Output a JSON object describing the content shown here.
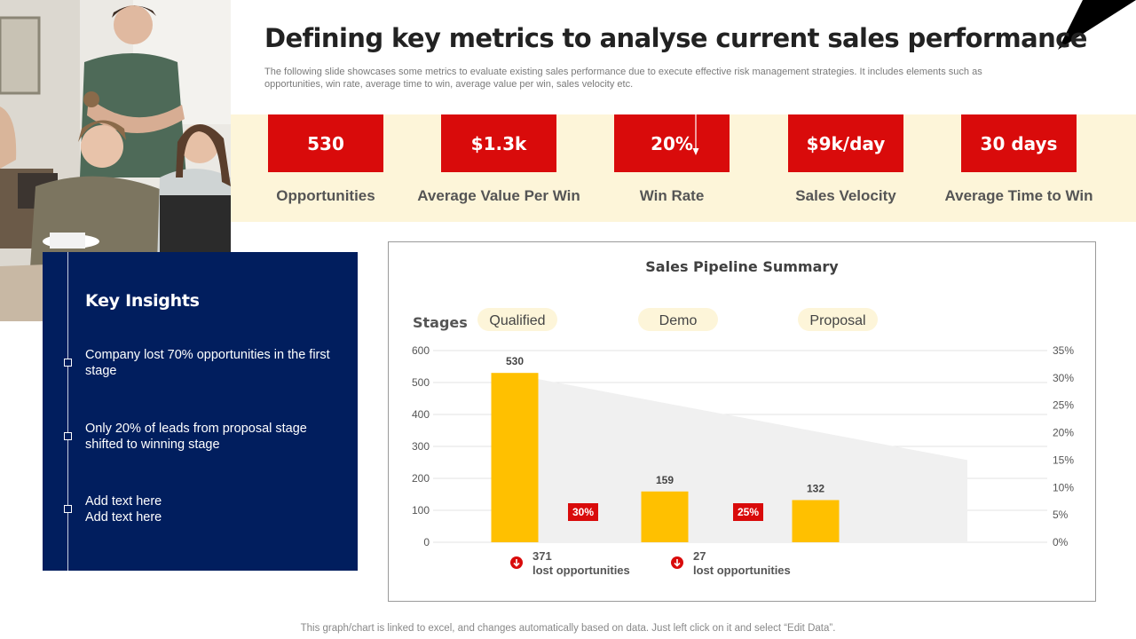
{
  "page": {
    "title": "Defining key metrics to analyse current sales performance",
    "subtitle": "The following slide showcases some metrics to evaluate existing sales performance due to execute effective risk management strategies. It includes elements such as opportunities, win rate, average time to win, average value per win, sales velocity etc.",
    "footer": "This graph/chart is linked to excel,  and changes automatically based on data. Just left click on it and select “Edit Data”."
  },
  "colors": {
    "accent_red": "#d90b0b",
    "navy": "#011e5e",
    "bar_yellow": "#ffc000",
    "band_cream": "#fdf5d9",
    "funnel_gray": "#f0f0f0"
  },
  "metrics": [
    {
      "value": "530",
      "label": "Opportunities"
    },
    {
      "value": "$1.3k",
      "label": "Average Value Per Win"
    },
    {
      "value": "20%",
      "label": "Win Rate"
    },
    {
      "value": "$9k/day",
      "label": "Sales Velocity"
    },
    {
      "value": "30 days",
      "label": "Average Time to Win"
    }
  ],
  "insights": {
    "heading": "Key Insights",
    "items": [
      "Company lost 70% opportunities in the first stage",
      "Only 20% of leads from proposal stage shifted to winning stage",
      "Add text here\nAdd text here"
    ]
  },
  "chart_data": {
    "type": "bar",
    "title": "Sales Pipeline Summary",
    "stages_label": "Stages",
    "categories": [
      "Qualified",
      "Demo",
      "Proposal"
    ],
    "values": [
      530,
      159,
      132
    ],
    "ylim": [
      0,
      600
    ],
    "yticks": [
      0,
      100,
      200,
      300,
      400,
      500,
      600
    ],
    "y2lim": [
      0,
      35
    ],
    "y2ticks": [
      "0%",
      "5%",
      "10%",
      "15%",
      "20%",
      "25%",
      "30%",
      "35%"
    ],
    "conversion_rates": [
      "30%",
      "25%"
    ],
    "funnel_area_y2": [
      30.6,
      15.0
    ],
    "losses": [
      {
        "count": "371",
        "text": "lost opportunities"
      },
      {
        "count": "27",
        "text": "lost opportunities"
      }
    ]
  }
}
